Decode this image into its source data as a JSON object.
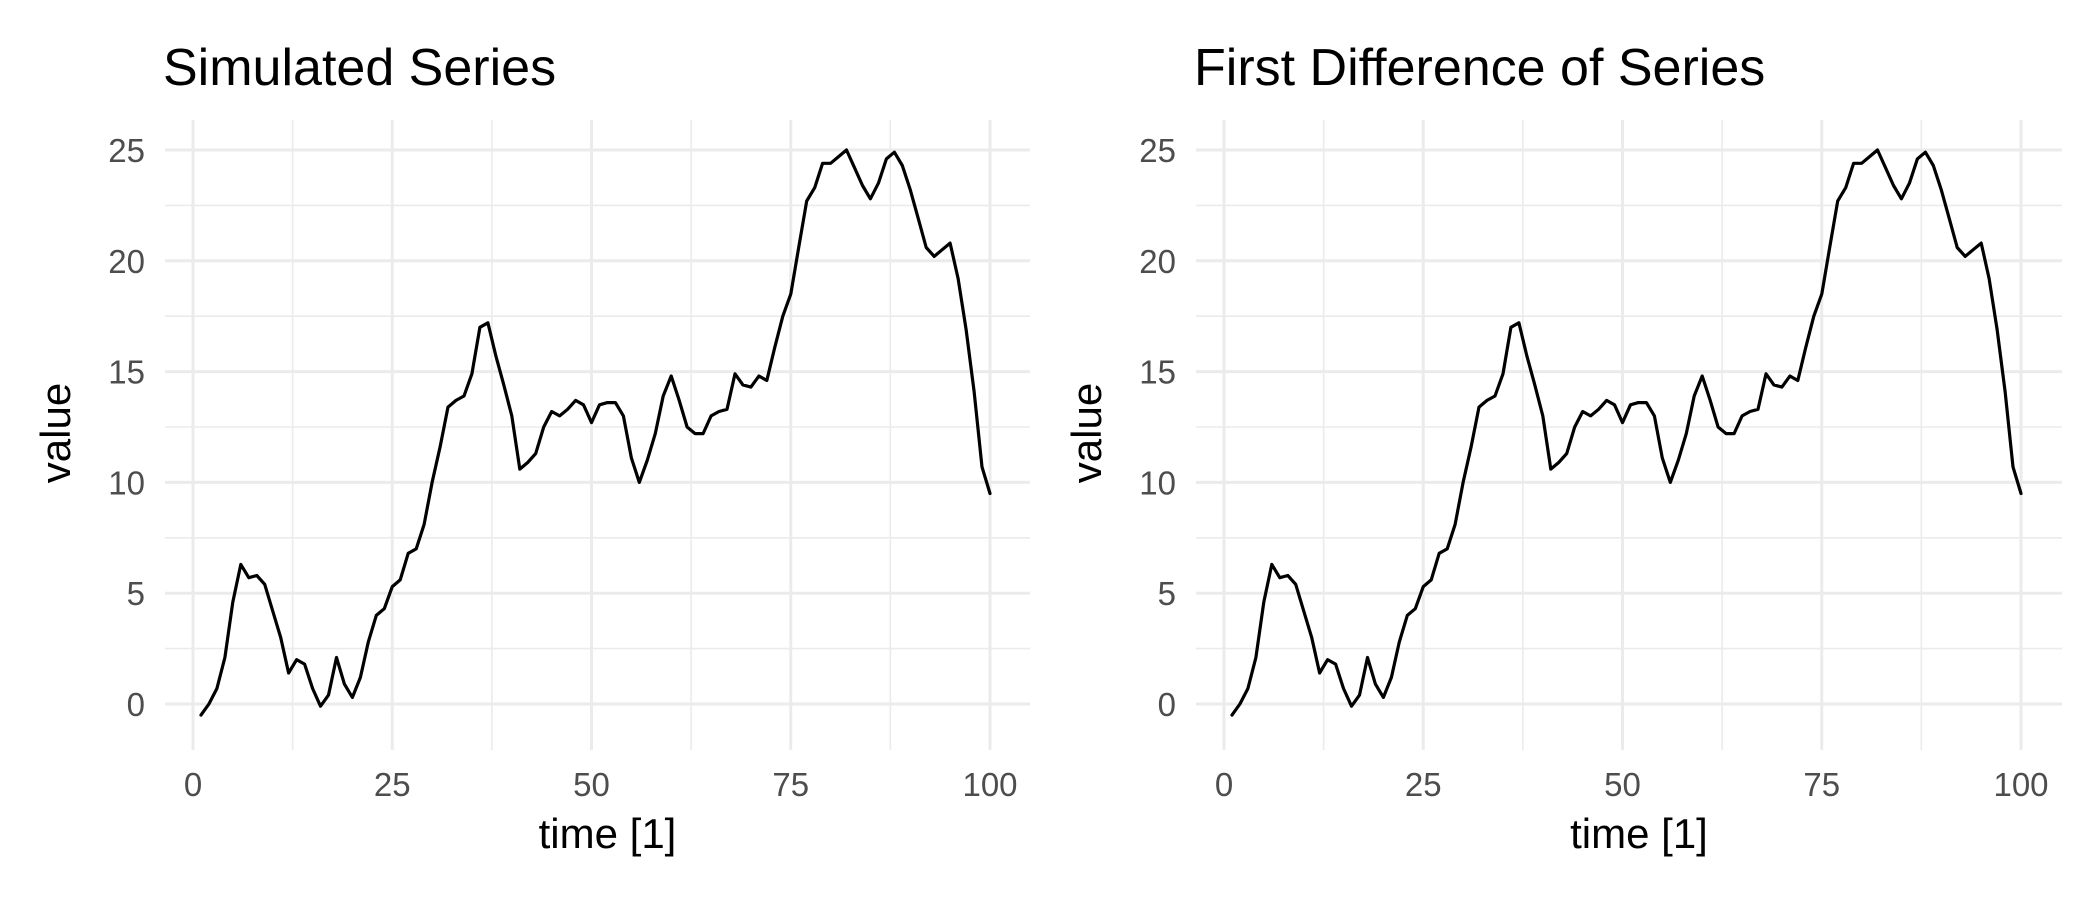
{
  "figure": {
    "background": "#ffffff"
  },
  "chart_data": [
    {
      "type": "line",
      "title": "Simulated Series",
      "xlabel": "time [1]",
      "ylabel": "value",
      "xlim": [
        0,
        100
      ],
      "ylim": [
        -0.5,
        25
      ],
      "x_ticks": [
        0,
        25,
        50,
        75,
        100
      ],
      "y_ticks": [
        0,
        5,
        10,
        15,
        20,
        25
      ],
      "grid": true,
      "line_color": "#000000",
      "x": [
        1,
        2,
        3,
        4,
        5,
        6,
        7,
        8,
        9,
        10,
        11,
        12,
        13,
        14,
        15,
        16,
        17,
        18,
        19,
        20,
        21,
        22,
        23,
        24,
        25,
        26,
        27,
        28,
        29,
        30,
        31,
        32,
        33,
        34,
        35,
        36,
        37,
        38,
        39,
        40,
        41,
        42,
        43,
        44,
        45,
        46,
        47,
        48,
        49,
        50,
        51,
        52,
        53,
        54,
        55,
        56,
        57,
        58,
        59,
        60,
        61,
        62,
        63,
        64,
        65,
        66,
        67,
        68,
        69,
        70,
        71,
        72,
        73,
        74,
        75,
        76,
        77,
        78,
        79,
        80,
        81,
        82,
        83,
        84,
        85,
        86,
        87,
        88,
        89,
        90,
        91,
        92,
        93,
        94,
        95,
        96,
        97,
        98,
        99,
        100
      ],
      "values": [
        -0.5,
        0.0,
        0.7,
        2.1,
        4.6,
        6.3,
        5.7,
        5.8,
        5.4,
        4.2,
        3.0,
        1.4,
        2.0,
        1.8,
        0.7,
        -0.1,
        0.4,
        2.1,
        0.9,
        0.3,
        1.2,
        2.8,
        4.0,
        4.3,
        5.3,
        5.6,
        6.8,
        7.0,
        8.1,
        10.0,
        11.6,
        13.4,
        13.7,
        13.9,
        14.9,
        17.0,
        17.2,
        15.7,
        14.4,
        13.0,
        10.6,
        10.9,
        11.3,
        12.5,
        13.2,
        13.0,
        13.3,
        13.7,
        13.5,
        12.7,
        13.5,
        13.6,
        13.6,
        13.0,
        11.1,
        10.0,
        11.0,
        12.2,
        13.9,
        14.8,
        13.7,
        12.5,
        12.2,
        12.2,
        13.0,
        13.2,
        13.3,
        14.9,
        14.4,
        14.3,
        14.8,
        14.6,
        16.1,
        17.5,
        18.5,
        20.6,
        22.7,
        23.3,
        24.4,
        24.4,
        24.7,
        25.0,
        24.2,
        23.4,
        22.8,
        23.5,
        24.6,
        24.9,
        24.3,
        23.2,
        21.9,
        20.6,
        20.2,
        20.5,
        20.8,
        19.2,
        16.9,
        14.1,
        10.7,
        9.5
      ]
    },
    {
      "type": "line",
      "title": "First Difference of Series",
      "xlabel": "time [1]",
      "ylabel": "value",
      "xlim": [
        0,
        100
      ],
      "ylim": [
        -0.5,
        25
      ],
      "x_ticks": [
        0,
        25,
        50,
        75,
        100
      ],
      "y_ticks": [
        0,
        5,
        10,
        15,
        20,
        25
      ],
      "grid": true,
      "line_color": "#000000",
      "x": [
        1,
        2,
        3,
        4,
        5,
        6,
        7,
        8,
        9,
        10,
        11,
        12,
        13,
        14,
        15,
        16,
        17,
        18,
        19,
        20,
        21,
        22,
        23,
        24,
        25,
        26,
        27,
        28,
        29,
        30,
        31,
        32,
        33,
        34,
        35,
        36,
        37,
        38,
        39,
        40,
        41,
        42,
        43,
        44,
        45,
        46,
        47,
        48,
        49,
        50,
        51,
        52,
        53,
        54,
        55,
        56,
        57,
        58,
        59,
        60,
        61,
        62,
        63,
        64,
        65,
        66,
        67,
        68,
        69,
        70,
        71,
        72,
        73,
        74,
        75,
        76,
        77,
        78,
        79,
        80,
        81,
        82,
        83,
        84,
        85,
        86,
        87,
        88,
        89,
        90,
        91,
        92,
        93,
        94,
        95,
        96,
        97,
        98,
        99,
        100
      ],
      "values": [
        -0.5,
        0.0,
        0.7,
        2.1,
        4.6,
        6.3,
        5.7,
        5.8,
        5.4,
        4.2,
        3.0,
        1.4,
        2.0,
        1.8,
        0.7,
        -0.1,
        0.4,
        2.1,
        0.9,
        0.3,
        1.2,
        2.8,
        4.0,
        4.3,
        5.3,
        5.6,
        6.8,
        7.0,
        8.1,
        10.0,
        11.6,
        13.4,
        13.7,
        13.9,
        14.9,
        17.0,
        17.2,
        15.7,
        14.4,
        13.0,
        10.6,
        10.9,
        11.3,
        12.5,
        13.2,
        13.0,
        13.3,
        13.7,
        13.5,
        12.7,
        13.5,
        13.6,
        13.6,
        13.0,
        11.1,
        10.0,
        11.0,
        12.2,
        13.9,
        14.8,
        13.7,
        12.5,
        12.2,
        12.2,
        13.0,
        13.2,
        13.3,
        14.9,
        14.4,
        14.3,
        14.8,
        14.6,
        16.1,
        17.5,
        18.5,
        20.6,
        22.7,
        23.3,
        24.4,
        24.4,
        24.7,
        25.0,
        24.2,
        23.4,
        22.8,
        23.5,
        24.6,
        24.9,
        24.3,
        23.2,
        21.9,
        20.6,
        20.2,
        20.5,
        20.8,
        19.2,
        16.9,
        14.1,
        10.7,
        9.5
      ]
    }
  ]
}
